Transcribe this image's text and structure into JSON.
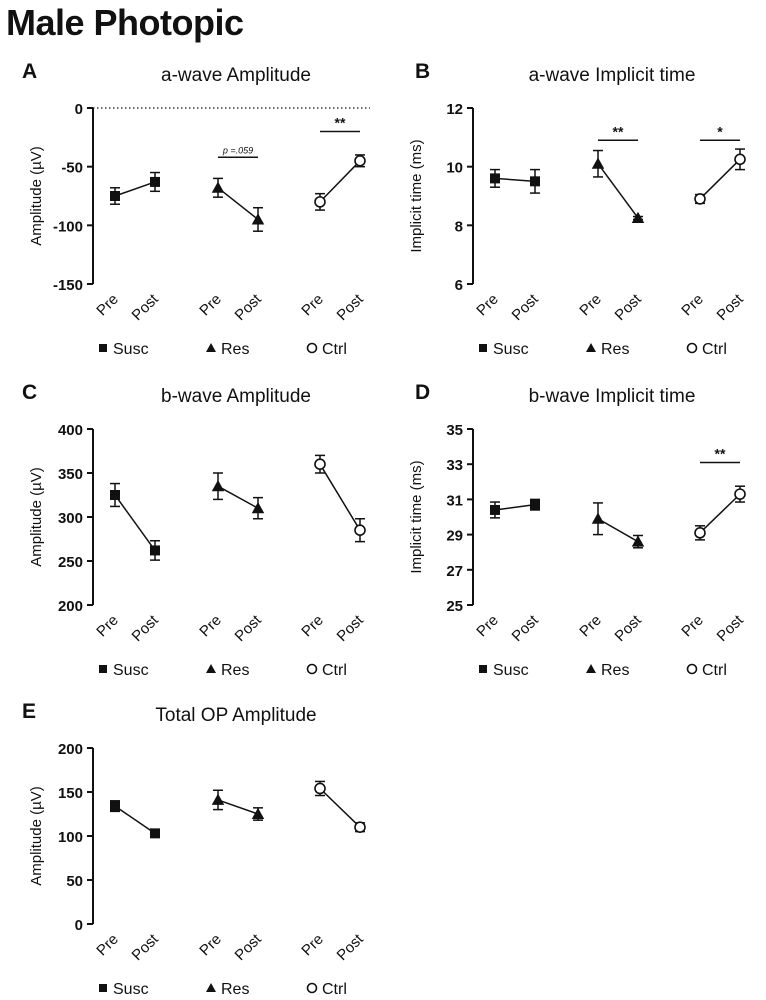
{
  "figure": {
    "title": "Male Photopic",
    "colors": {
      "ink": "#111111",
      "open_fill": "#ffffff"
    }
  },
  "chart_data": [
    {
      "panel": "A",
      "type": "scatter",
      "title": "a-wave Amplitude",
      "ylabel": "Amplitude (µV)",
      "ylim": [
        -150,
        0
      ],
      "yticks": [
        0,
        -50,
        -100,
        -150
      ],
      "ytick_labels": [
        "0",
        "-50",
        "-100",
        "-150"
      ],
      "zero_line": true,
      "categories": [
        "Pre",
        "Post",
        "Pre",
        "Post",
        "Pre",
        "Post"
      ],
      "series": [
        {
          "name": "Susc",
          "marker": "square",
          "values": [
            -75,
            -63
          ],
          "errors": [
            7,
            8
          ]
        },
        {
          "name": "Res",
          "marker": "triangle",
          "values": [
            -68,
            -95
          ],
          "errors": [
            8,
            10
          ]
        },
        {
          "name": "Ctrl",
          "marker": "circle-open",
          "values": [
            -80,
            -45
          ],
          "errors": [
            7,
            5
          ]
        }
      ],
      "annotations": [
        {
          "group": 1,
          "text": "p =.059",
          "italic": true,
          "y": -42
        },
        {
          "group": 2,
          "text": "**",
          "y": -20
        }
      ]
    },
    {
      "panel": "B",
      "type": "scatter",
      "title": "a-wave Implicit time",
      "ylabel": "Implicit time (ms)",
      "ylim": [
        6,
        12
      ],
      "yticks": [
        6,
        8,
        10,
        12
      ],
      "ytick_labels": [
        "6",
        "8",
        "10",
        "12"
      ],
      "categories": [
        "Pre",
        "Post",
        "Pre",
        "Post",
        "Pre",
        "Post"
      ],
      "series": [
        {
          "name": "Susc",
          "marker": "square",
          "values": [
            9.6,
            9.5
          ],
          "errors": [
            0.3,
            0.4
          ]
        },
        {
          "name": "Res",
          "marker": "triangle",
          "values": [
            10.1,
            8.25
          ],
          "errors": [
            0.45,
            0.05
          ]
        },
        {
          "name": "Ctrl",
          "marker": "circle-open",
          "values": [
            8.9,
            10.25
          ],
          "errors": [
            0.15,
            0.35
          ]
        }
      ],
      "annotations": [
        {
          "group": 1,
          "text": "**",
          "y": 10.9
        },
        {
          "group": 2,
          "text": "*",
          "y": 10.9
        }
      ]
    },
    {
      "panel": "C",
      "type": "scatter",
      "title": "b-wave Amplitude",
      "ylabel": "Amplitude (µV)",
      "ylim": [
        200,
        400
      ],
      "yticks": [
        200,
        250,
        300,
        350,
        400
      ],
      "ytick_labels": [
        "200",
        "250",
        "300",
        "350",
        "400"
      ],
      "categories": [
        "Pre",
        "Post",
        "Pre",
        "Post",
        "Pre",
        "Post"
      ],
      "series": [
        {
          "name": "Susc",
          "marker": "square",
          "values": [
            325,
            262
          ],
          "errors": [
            13,
            11
          ]
        },
        {
          "name": "Res",
          "marker": "triangle",
          "values": [
            335,
            310
          ],
          "errors": [
            15,
            12
          ]
        },
        {
          "name": "Ctrl",
          "marker": "circle-open",
          "values": [
            360,
            285
          ],
          "errors": [
            10,
            13
          ]
        }
      ],
      "annotations": []
    },
    {
      "panel": "D",
      "type": "scatter",
      "title": "b-wave Implicit time",
      "ylabel": "Implicit time (ms)",
      "ylim": [
        25,
        35
      ],
      "yticks": [
        25,
        27,
        29,
        31,
        33,
        35
      ],
      "ytick_labels": [
        "25",
        "27",
        "29",
        "31",
        "33",
        "35"
      ],
      "categories": [
        "Pre",
        "Post",
        "Pre",
        "Post",
        "Pre",
        "Post"
      ],
      "series": [
        {
          "name": "Susc",
          "marker": "square",
          "values": [
            30.4,
            30.7
          ],
          "errors": [
            0.45,
            0.3
          ]
        },
        {
          "name": "Res",
          "marker": "triangle",
          "values": [
            29.9,
            28.6
          ],
          "errors": [
            0.9,
            0.35
          ]
        },
        {
          "name": "Ctrl",
          "marker": "circle-open",
          "values": [
            29.1,
            31.3
          ],
          "errors": [
            0.4,
            0.45
          ]
        }
      ],
      "annotations": [
        {
          "group": 2,
          "text": "**",
          "y": 33.1
        }
      ]
    },
    {
      "panel": "E",
      "type": "scatter",
      "title": "Total OP Amplitude",
      "ylabel": "Amplitude (µV)",
      "ylim": [
        0,
        200
      ],
      "yticks": [
        0,
        50,
        100,
        150,
        200
      ],
      "ytick_labels": [
        "0",
        "50",
        "100",
        "150",
        "200"
      ],
      "categories": [
        "Pre",
        "Post",
        "Pre",
        "Post",
        "Pre",
        "Post"
      ],
      "series": [
        {
          "name": "Susc",
          "marker": "square",
          "values": [
            134,
            103
          ],
          "errors": [
            6,
            2
          ]
        },
        {
          "name": "Res",
          "marker": "triangle",
          "values": [
            141,
            125
          ],
          "errors": [
            11,
            7
          ]
        },
        {
          "name": "Ctrl",
          "marker": "circle-open",
          "values": [
            154,
            110
          ],
          "errors": [
            8,
            5
          ]
        }
      ],
      "annotations": []
    }
  ]
}
